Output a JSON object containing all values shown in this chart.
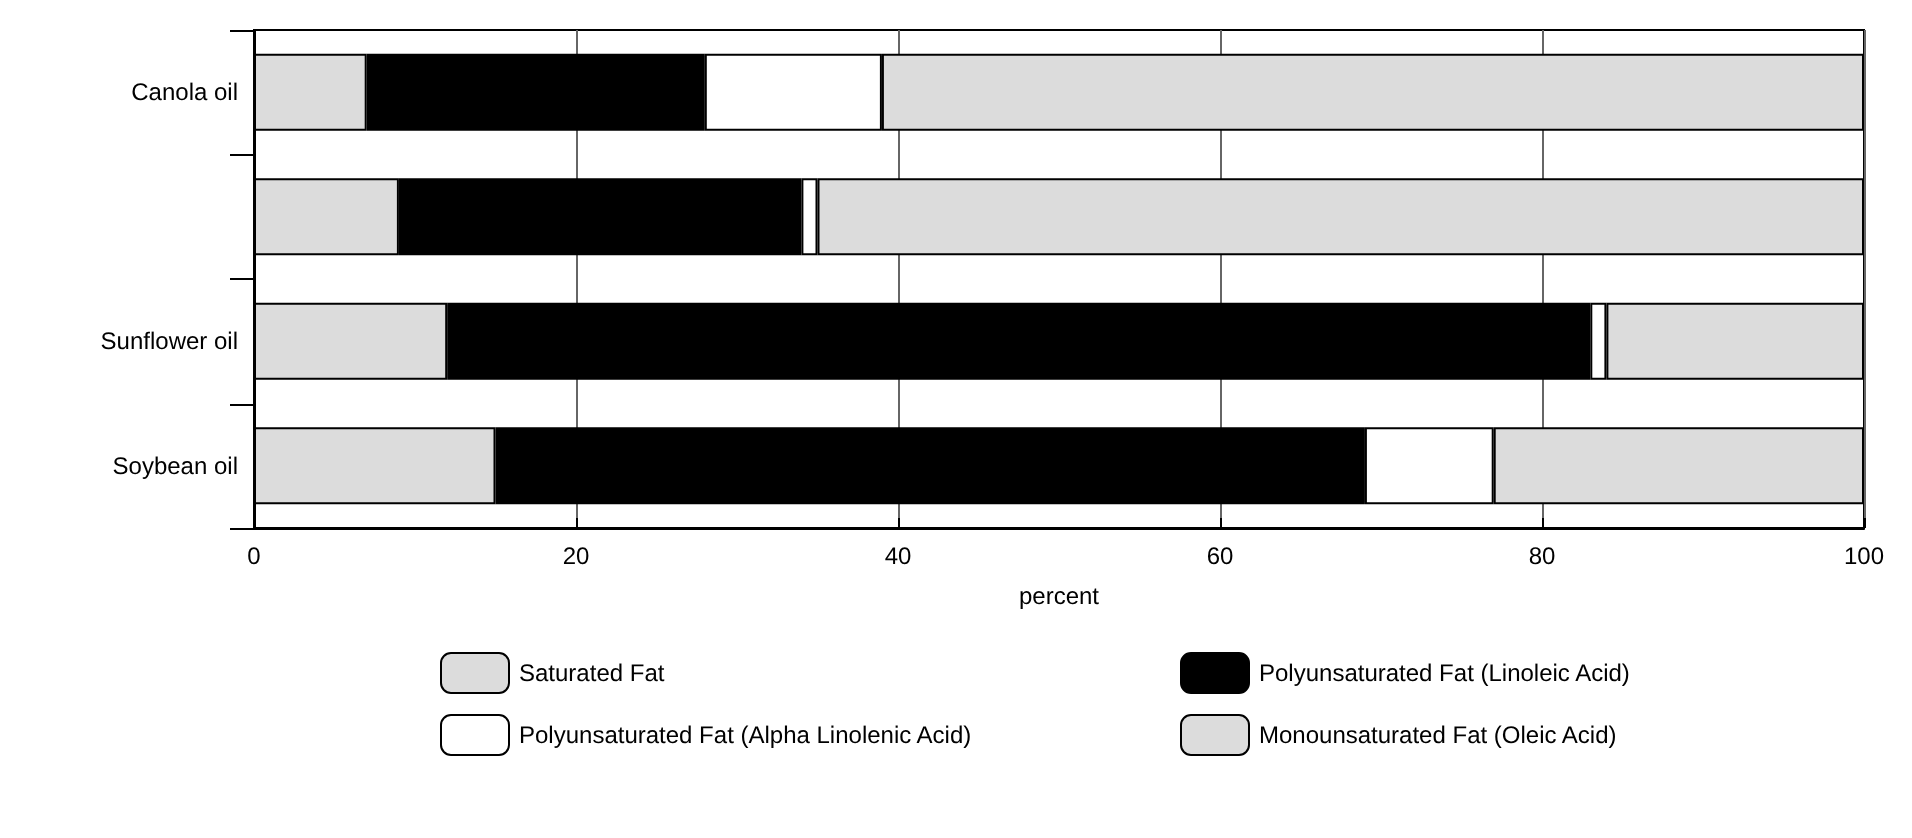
{
  "chart_data": {
    "type": "bar",
    "orientation": "horizontal",
    "stacked": true,
    "xlabel": "percent",
    "categories": [
      "Canola oil",
      null,
      "Sunflower oil",
      "Soybean oil"
    ],
    "series": [
      {
        "name": "Saturated Fat",
        "color": "#dcdcdc",
        "values": [
          7,
          9,
          12,
          15
        ]
      },
      {
        "name": "Polyunsaturated Fat (Linoleic Acid)",
        "color": "#000000",
        "values": [
          21,
          25,
          71,
          54
        ]
      },
      {
        "name": "Polyunsaturated Fat (Alpha Linolenic Acid)",
        "color": "#ffffff",
        "values": [
          11,
          1,
          1,
          8
        ]
      },
      {
        "name": "Monounsaturated Fat (Oleic Acid)",
        "color": "#dcdcdc",
        "values": [
          61,
          65,
          16,
          23
        ]
      }
    ],
    "xlim": [
      0,
      100
    ],
    "xticks": [
      0,
      20,
      40,
      60,
      80,
      100
    ],
    "grid": "x",
    "legend": "bottom"
  }
}
